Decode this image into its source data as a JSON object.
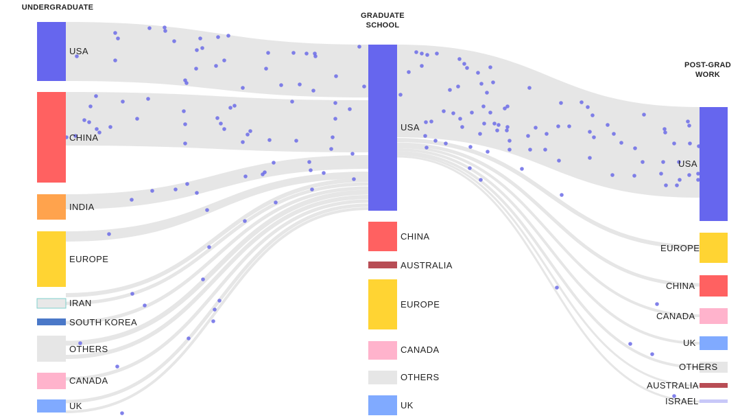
{
  "columns": [
    {
      "id": "undergrad",
      "title_lines": [
        "UNDERGRADUATE"
      ]
    },
    {
      "id": "grad",
      "title_lines": [
        "GRADUATE",
        "SCHOOL"
      ]
    },
    {
      "id": "post",
      "title_lines": [
        "POST-GRAD",
        "WORK"
      ]
    }
  ],
  "nodes": {
    "undergrad": [
      {
        "label": "USA",
        "color": "#6666ee"
      },
      {
        "label": "CHINA",
        "color": "#ff6161"
      },
      {
        "label": "INDIA",
        "color": "#ffa34d"
      },
      {
        "label": "EUROPE",
        "color": "#ffd433"
      },
      {
        "label": "IRAN",
        "color": "#e8e8e8",
        "outline": "#7fd1cc"
      },
      {
        "label": "SOUTH KOREA",
        "color": "#4a78c8"
      },
      {
        "label": "OTHERS",
        "color": "#e6e6e6"
      },
      {
        "label": "CANADA",
        "color": "#ffb3cc"
      },
      {
        "label": "UK",
        "color": "#80aaff"
      }
    ],
    "grad": [
      {
        "label": "USA",
        "color": "#6666ee"
      },
      {
        "label": "CHINA",
        "color": "#ff6161"
      },
      {
        "label": "AUSTRALIA",
        "color": "#b84d55"
      },
      {
        "label": "EUROPE",
        "color": "#ffd433"
      },
      {
        "label": "CANADA",
        "color": "#ffb3cc"
      },
      {
        "label": "OTHERS",
        "color": "#e6e6e6"
      },
      {
        "label": "UK",
        "color": "#80aaff"
      }
    ],
    "post": [
      {
        "label": "USA",
        "color": "#6666ee"
      },
      {
        "label": "EUROPE",
        "color": "#ffd433"
      },
      {
        "label": "CHINA",
        "color": "#ff6161"
      },
      {
        "label": "CANADA",
        "color": "#ffb3cc"
      },
      {
        "label": "UK",
        "color": "#80aaff"
      },
      {
        "label": "OTHERS",
        "color": "#e6e6e6"
      },
      {
        "label": "AUSTRALIA",
        "color": "#b84d55"
      },
      {
        "label": "ISRAEL",
        "color": "#c8c8f8"
      }
    ]
  },
  "style": {
    "flow_color": "#e6e6e6",
    "dot_color": "#6b6be6"
  }
}
